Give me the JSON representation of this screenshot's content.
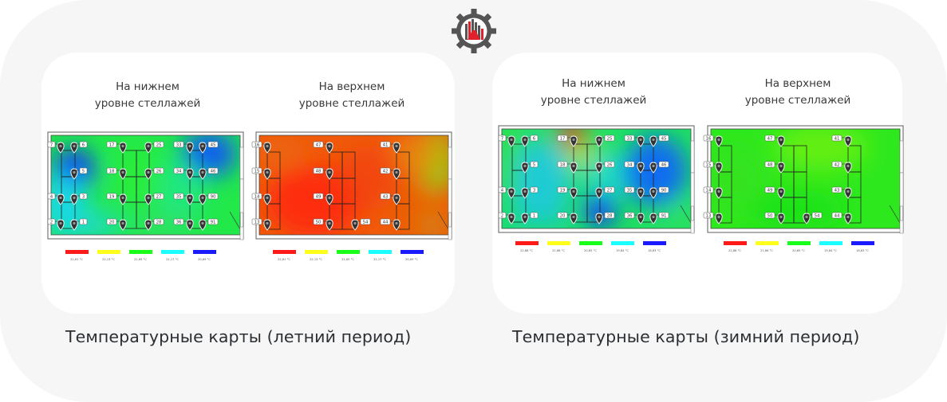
{
  "logo": {
    "icon": "gear-chart-flask-icon",
    "colors": {
      "gear": "#555555",
      "bars": "#e0202a"
    }
  },
  "summer": {
    "caption": "Температурные карты (летний период)",
    "lower": {
      "heading_line1": "На нижнем",
      "heading_line2": "уровне стеллажей",
      "pin_labels": [
        "7",
        "6",
        "5",
        "4",
        "3",
        "2",
        "1",
        "17",
        "18",
        "19",
        "20",
        "25",
        "26",
        "27",
        "28",
        "33",
        "34",
        "35",
        "36",
        "45",
        "46",
        "90",
        "91"
      ],
      "legend": [
        {
          "color": "#ff1a1a",
          "label": "22,61 °C"
        },
        {
          "color": "#ffff1a",
          "label": "22,13 °C"
        },
        {
          "color": "#1aff1a",
          "label": "21,65 °C"
        },
        {
          "color": "#1affff",
          "label": "21,17 °C"
        },
        {
          "color": "#1a1aff",
          "label": "20,69 °C"
        }
      ]
    },
    "upper": {
      "heading_line1": "На верхнем",
      "heading_line2": "уровне стеллажей",
      "pin_labels": [
        "16",
        "15",
        "14",
        "13",
        "47",
        "48",
        "49",
        "50",
        "54",
        "41",
        "42",
        "43",
        "44"
      ],
      "legend": [
        {
          "color": "#ff1a1a",
          "label": "22,61 °C"
        },
        {
          "color": "#ffff1a",
          "label": "22,13 °C"
        },
        {
          "color": "#1aff1a",
          "label": "21,65 °C"
        },
        {
          "color": "#1affff",
          "label": "21,17 °C"
        },
        {
          "color": "#1a1aff",
          "label": "20,69 °C"
        }
      ]
    }
  },
  "winter": {
    "caption": "Температурные карты (зимний период)",
    "lower": {
      "heading_line1": "На нижнем",
      "heading_line2": "уровне стеллажей",
      "pin_labels": [
        "7",
        "6",
        "5",
        "4",
        "3",
        "2",
        "1",
        "17",
        "18",
        "19",
        "20",
        "25",
        "26",
        "27",
        "28",
        "33",
        "34",
        "35",
        "36",
        "45",
        "46",
        "90",
        "91"
      ],
      "legend": [
        {
          "color": "#ff1a1a",
          "label": "22,88 °C"
        },
        {
          "color": "#ffff1a",
          "label": "21,66 °C"
        },
        {
          "color": "#1aff1a",
          "label": "20,65 °C"
        },
        {
          "color": "#1affff",
          "label": "19,84 °C"
        },
        {
          "color": "#1a1aff",
          "label": "18,63 °C"
        }
      ]
    },
    "upper": {
      "heading_line1": "На верхнем",
      "heading_line2": "уровне стеллажей",
      "pin_labels": [
        "16",
        "15",
        "14",
        "13",
        "47",
        "48",
        "49",
        "50",
        "54",
        "41",
        "42",
        "43",
        "44"
      ],
      "legend": [
        {
          "color": "#ff1a1a",
          "label": "22,88 °C"
        },
        {
          "color": "#ffff1a",
          "label": "21,66 °C"
        },
        {
          "color": "#1aff1a",
          "label": "20,65 °C"
        },
        {
          "color": "#1affff",
          "label": "19,84 °C"
        },
        {
          "color": "#1a1aff",
          "label": "18,63 °C"
        }
      ]
    }
  }
}
